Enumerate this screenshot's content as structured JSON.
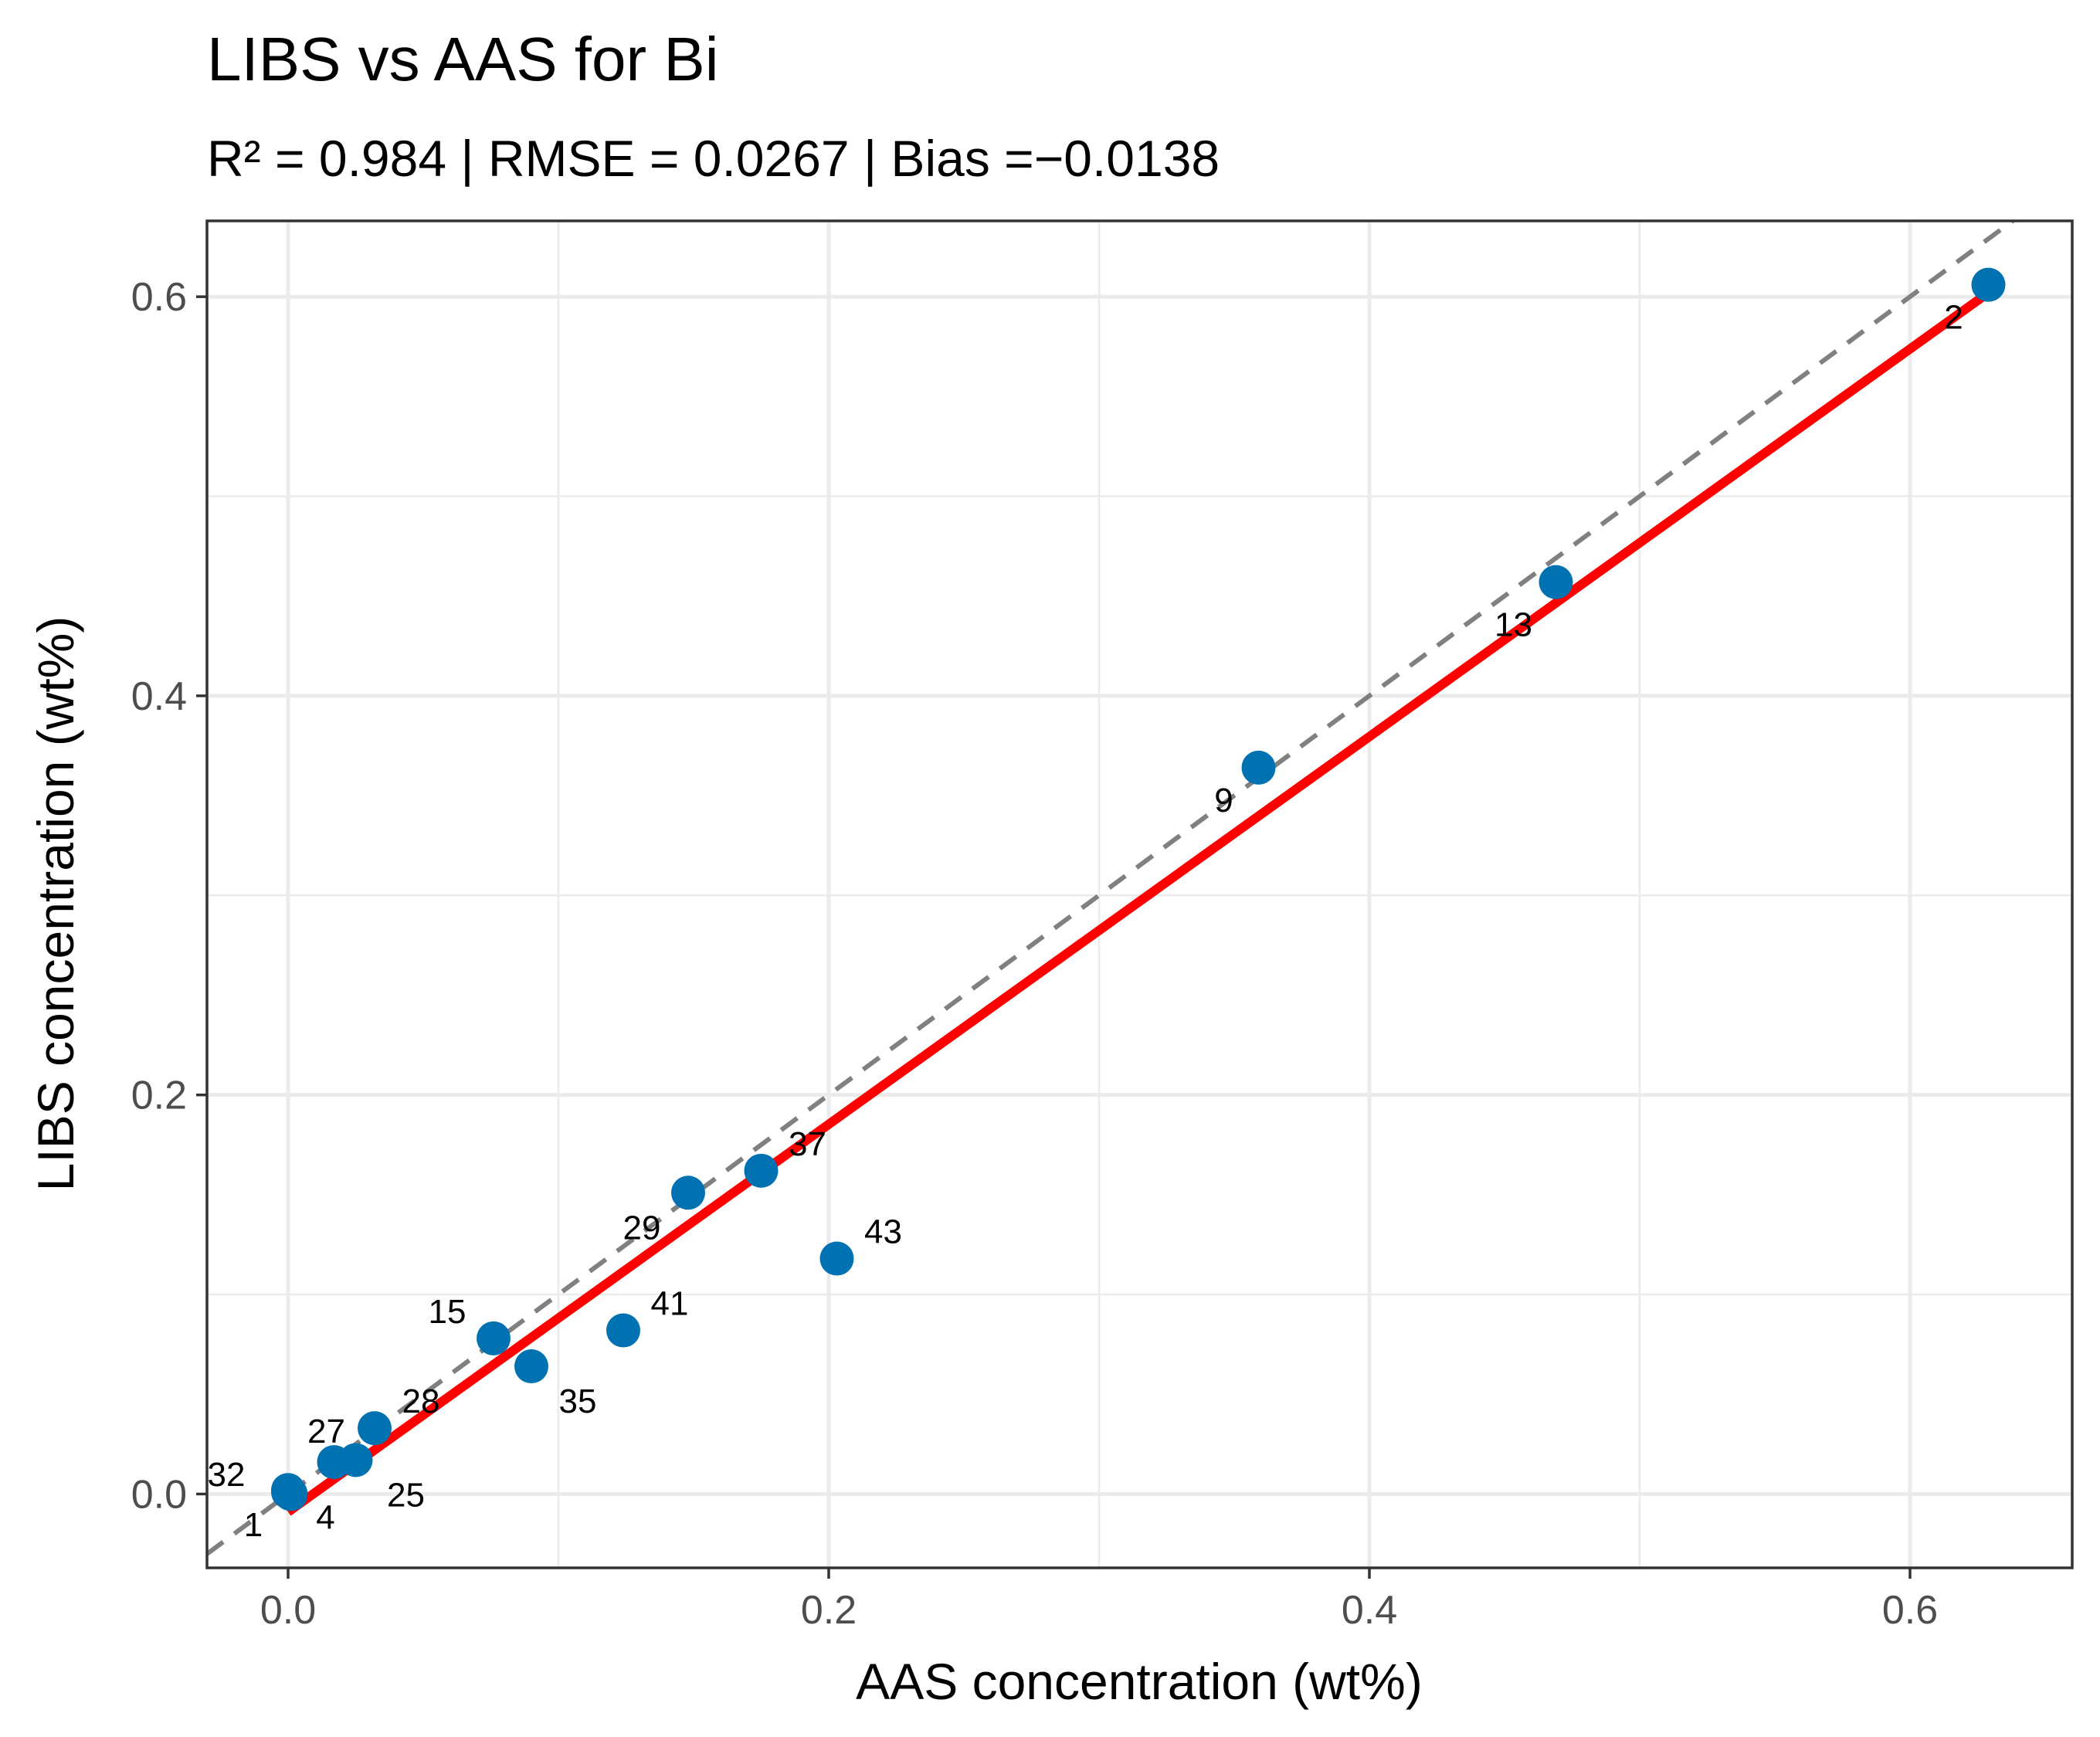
{
  "chart_data": {
    "type": "scatter",
    "title": "LIBS vs AAS for Bi",
    "subtitle": "R² = 0.984 | RMSE = 0.0267 | Bias =−0.0138",
    "xlabel": "AAS concentration (wt%)",
    "ylabel": "LIBS concentration (wt%)",
    "xlim": [
      -0.03,
      0.66
    ],
    "ylim": [
      -0.037,
      0.638
    ],
    "x_ticks": [
      0.0,
      0.2,
      0.4,
      0.6
    ],
    "y_ticks": [
      0.0,
      0.2,
      0.4,
      0.6
    ],
    "x_tick_labels": [
      "0.0",
      "0.2",
      "0.4",
      "0.6"
    ],
    "y_tick_labels": [
      "0.0",
      "0.2",
      "0.4",
      "0.6"
    ],
    "grid": true,
    "point_color": "#0072B2",
    "fit_line_color": "#FF0000",
    "identity_line_color": "#808080",
    "points": [
      {
        "label": "1",
        "x": 0.0,
        "y": 0.001
      },
      {
        "label": "32",
        "x": 0.0,
        "y": 0.002
      },
      {
        "label": "4",
        "x": 0.001,
        "y": 0.0
      },
      {
        "label": "27",
        "x": 0.017,
        "y": 0.016
      },
      {
        "label": "25",
        "x": 0.025,
        "y": 0.017
      },
      {
        "label": "28",
        "x": 0.032,
        "y": 0.033
      },
      {
        "label": "15",
        "x": 0.076,
        "y": 0.078
      },
      {
        "label": "35",
        "x": 0.09,
        "y": 0.064
      },
      {
        "label": "41",
        "x": 0.124,
        "y": 0.082
      },
      {
        "label": "29",
        "x": 0.148,
        "y": 0.151
      },
      {
        "label": "37",
        "x": 0.175,
        "y": 0.162
      },
      {
        "label": "43",
        "x": 0.203,
        "y": 0.118
      },
      {
        "label": "9",
        "x": 0.359,
        "y": 0.364
      },
      {
        "label": "13",
        "x": 0.469,
        "y": 0.457
      },
      {
        "label": "2",
        "x": 0.629,
        "y": 0.606
      }
    ],
    "fit_line": {
      "x": [
        0.0,
        0.629
      ],
      "y": [
        -0.009,
        0.602
      ]
    },
    "identity_line": {
      "x": [
        -0.03,
        0.66
      ],
      "y": [
        -0.03,
        0.66
      ]
    }
  }
}
